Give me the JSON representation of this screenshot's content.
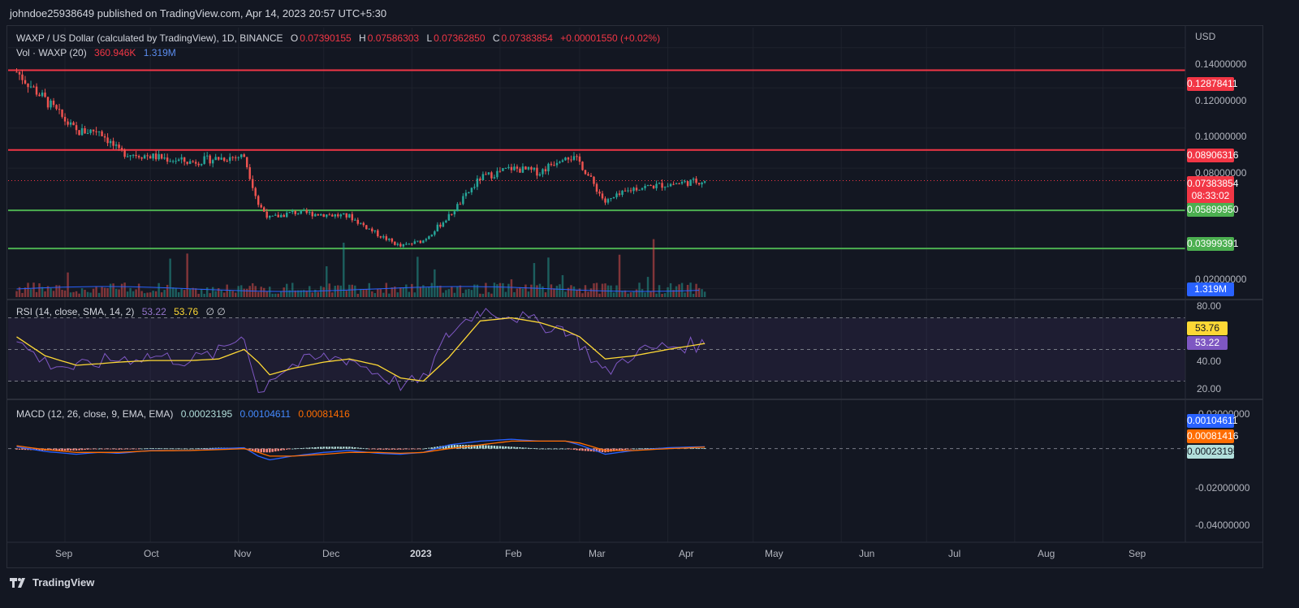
{
  "header": {
    "publish_text": "johndoe25938649 published on TradingView.com, Apr 14, 2023 20:57 UTC+5:30"
  },
  "footer": {
    "brand": "TradingView"
  },
  "main_legend": {
    "symbol": "WAXP / US Dollar (calculated by TradingView), 1D, BINANCE",
    "o_label": "O",
    "o": "0.07390155",
    "h_label": "H",
    "h": "0.07586303",
    "l_label": "L",
    "l": "0.07362850",
    "c_label": "C",
    "c": "0.07383854",
    "change": "+0.00001550 (+0.02%)"
  },
  "vol_legend": {
    "label": "Vol · WAXP (20)",
    "v1": "360.946K",
    "v2": "1.319M"
  },
  "rsi_legend": {
    "label": "RSI (14, close, SMA, 14, 2)",
    "rsi": "53.22",
    "sma": "53.76",
    "extra": "∅ ∅"
  },
  "macd_legend": {
    "label": "MACD (12, 26, close, 9, EMA, EMA)",
    "hist": "0.00023195",
    "macd": "0.00104611",
    "signal": "0.00081416"
  },
  "price_axis": {
    "currency": "USD",
    "ticks": [
      "0.14000000",
      "0.12000000",
      "0.10000000",
      "0.08000000",
      "0.02000000"
    ]
  },
  "rsi_axis": {
    "ticks": [
      "80.00",
      "40.00",
      "20.00"
    ]
  },
  "macd_axis": {
    "ticks": [
      "0.02000000",
      "-0.02000000",
      "-0.04000000"
    ]
  },
  "time_axis": {
    "labels": [
      "Sep",
      "Oct",
      "Nov",
      "Dec",
      "2023",
      "Feb",
      "Mar",
      "Apr",
      "May",
      "Jun",
      "Jul",
      "Aug",
      "Sep"
    ]
  },
  "tags": {
    "r1": "0.12878411",
    "r2": "0.08906316",
    "price": "0.07383854",
    "countdown": "08:33:02",
    "s1": "0.05899950",
    "s2": "0.03999391",
    "vol": "1.319M",
    "rsi_sma": "53.76",
    "rsi": "53.22",
    "macd": "0.00104611",
    "signal": "0.00081416",
    "hist": "0.00023195"
  },
  "colors": {
    "up": "#26a69a",
    "down": "#ef5350",
    "resistance": "#f23645",
    "support": "#4caf50",
    "macd": "#2962ff",
    "signal": "#ff6d00",
    "rsi": "#7e57c2",
    "rsi_sma": "#fdd835"
  },
  "chart_data": {
    "type": "line",
    "title": "WAXP / US Dollar (calculated by TradingView), 1D, BINANCE",
    "x": [
      "2022-08-15",
      "2022-08-25",
      "2022-09-05",
      "2022-09-13",
      "2022-09-20",
      "2022-10-01",
      "2022-10-15",
      "2022-10-25",
      "2022-11-03",
      "2022-11-08",
      "2022-11-12",
      "2022-11-20",
      "2022-12-01",
      "2022-12-10",
      "2022-12-20",
      "2022-12-28",
      "2023-01-05",
      "2023-01-14",
      "2023-01-25",
      "2023-02-05",
      "2023-02-15",
      "2023-02-24",
      "2023-03-01",
      "2023-03-10",
      "2023-03-20",
      "2023-04-01",
      "2023-04-14"
    ],
    "close": [
      0.128,
      0.114,
      0.098,
      0.099,
      0.088,
      0.086,
      0.083,
      0.085,
      0.086,
      0.062,
      0.055,
      0.058,
      0.057,
      0.056,
      0.047,
      0.041,
      0.044,
      0.056,
      0.075,
      0.08,
      0.078,
      0.087,
      0.083,
      0.063,
      0.07,
      0.072,
      0.0738
    ],
    "horizontal_levels": [
      {
        "name": "resistance",
        "value": 0.12878411
      },
      {
        "name": "resistance",
        "value": 0.08906316
      },
      {
        "name": "support",
        "value": 0.0589995
      },
      {
        "name": "support",
        "value": 0.03999391
      }
    ],
    "ylabel": "USD",
    "ylim": [
      0.015,
      0.15
    ],
    "rsi_ylim": [
      20,
      80
    ],
    "rsi_bands": [
      30,
      70
    ],
    "rsi_values": [
      55,
      42,
      38,
      42,
      44,
      46,
      43,
      48,
      60,
      22,
      32,
      40,
      45,
      44,
      35,
      28,
      30,
      60,
      75,
      72,
      66,
      63,
      54,
      35,
      48,
      52,
      53.22
    ],
    "rsi_sma_values": [
      58,
      46,
      40,
      41,
      42,
      43,
      43,
      44,
      50,
      42,
      34,
      38,
      42,
      44,
      40,
      32,
      30,
      45,
      68,
      70,
      67,
      62,
      58,
      44,
      46,
      50,
      53.76
    ],
    "macd_values": [
      0.001,
      -0.0015,
      -0.003,
      -0.002,
      -0.0025,
      -0.001,
      -0.001,
      0.0,
      0.0005,
      -0.004,
      -0.006,
      -0.004,
      -0.002,
      -0.001,
      -0.0025,
      -0.003,
      -0.002,
      0.002,
      0.004,
      0.005,
      0.004,
      0.004,
      0.002,
      -0.003,
      -0.001,
      0.0005,
      0.00104611
    ],
    "signal_values": [
      0.0015,
      -0.0005,
      -0.002,
      -0.002,
      -0.002,
      -0.0012,
      -0.001,
      -0.0005,
      0.0,
      -0.002,
      -0.004,
      -0.004,
      -0.003,
      -0.002,
      -0.002,
      -0.0025,
      -0.002,
      0.0,
      0.002,
      0.004,
      0.004,
      0.004,
      0.003,
      -0.001,
      -0.001,
      0.0,
      0.00081416
    ],
    "macd_ylim": [
      -0.05,
      0.025
    ]
  }
}
